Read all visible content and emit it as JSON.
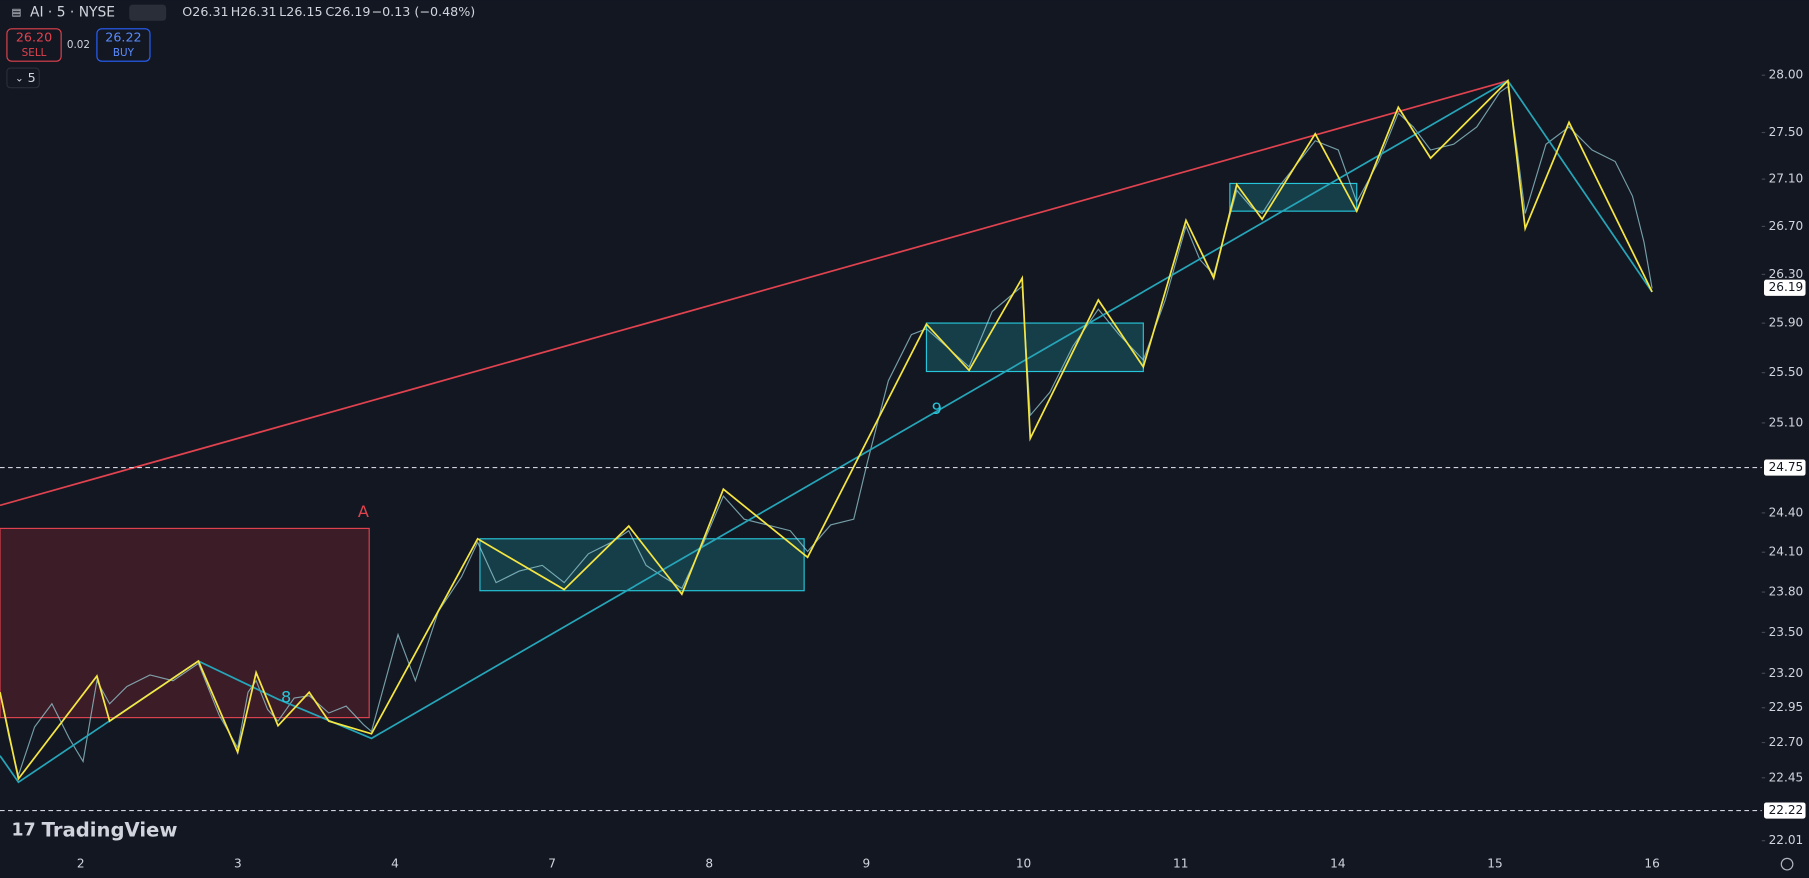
{
  "header": {
    "symbol": "AI · 5 · NYSE",
    "open": "O26.31",
    "high": "H26.31",
    "low": "L26.15",
    "close": "C26.19",
    "change": "−0.13 (−0.48%)"
  },
  "trade": {
    "sell_price": "26.20",
    "sell_label": "SELL",
    "spread": "0.02",
    "buy_price": "26.22",
    "buy_label": "BUY"
  },
  "indicators": "5",
  "drawing_labels": {
    "box": "A",
    "wave_a": "9",
    "wave_b": "8"
  },
  "logo": "TradingView",
  "price_axis": {
    "log": true,
    "ylim": [
      21.92,
      28.67
    ],
    "yticks": [
      {
        "value": 28,
        "label": "28.00"
      },
      {
        "value": 27.5,
        "label": "27.50"
      },
      {
        "value": 27.1,
        "label": "27.10"
      },
      {
        "value": 26.7,
        "label": "26.70"
      },
      {
        "value": 26.3,
        "label": "26.30"
      },
      {
        "value": 25.9,
        "label": "25.90"
      },
      {
        "value": 25.5,
        "label": "25.50"
      },
      {
        "value": 25.1,
        "label": "25.10"
      },
      {
        "value": 24.4,
        "label": "24.40"
      },
      {
        "value": 24.1,
        "label": "24.10"
      },
      {
        "value": 23.8,
        "label": "23.80"
      },
      {
        "value": 23.5,
        "label": "23.50"
      },
      {
        "value": 23.2,
        "label": "23.20"
      },
      {
        "value": 22.95,
        "label": "22.95"
      },
      {
        "value": 22.7,
        "label": "22.70"
      },
      {
        "value": 22.45,
        "label": "22.45"
      },
      {
        "value": 22.01,
        "label": "22.01"
      }
    ],
    "markers": [
      {
        "value": 26.19,
        "label": "26.19",
        "dashed": false
      },
      {
        "value": 24.75,
        "label": "24.75",
        "dashed": true
      },
      {
        "value": 22.22,
        "label": "22.22",
        "dashed": true
      }
    ]
  },
  "time_axis": {
    "labels": [
      "2",
      "3",
      "4",
      "7",
      "8",
      "9",
      "10",
      "11",
      "14",
      "15",
      "16"
    ]
  }
}
